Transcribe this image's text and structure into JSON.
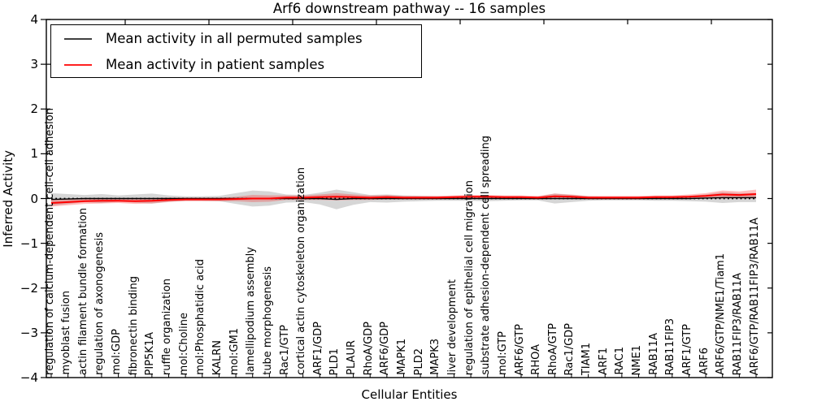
{
  "chart_data": {
    "type": "line",
    "title": "Arf6 downstream pathway -- 16 samples",
    "xlabel": "Cellular Entities",
    "ylabel": "Inferred Activity",
    "ylim": [
      -4,
      4
    ],
    "ytick_labels": [
      "4",
      "3",
      "2",
      "1",
      "0",
      "−1",
      "−2",
      "−3",
      "−4"
    ],
    "ytick_values": [
      4,
      3,
      2,
      1,
      0,
      -1,
      -2,
      -3,
      -4
    ],
    "grid": false,
    "legend_position": "upper left",
    "zero_line_style": "dotted",
    "zero_line_color": "#000000",
    "categories": [
      "regulation of calcium-dependent cell-cell adhesion",
      "myoblast fusion",
      "actin filament bundle formation",
      "regulation of axonogenesis",
      "mol:GDP",
      "fibronectin binding",
      "PIP5K1A",
      "ruffle organization",
      "mol:Choline",
      "mol:Phosphatidic acid",
      "KALRN",
      "mol:GM1",
      "lamellipodium assembly",
      "tube morphogenesis",
      "Rac1/GTP",
      "cortical actin cytoskeleton organization",
      "ARF1/GDP",
      "PLD1",
      "PLAUR",
      "RhoA/GDP",
      "ARF6/GDP",
      "MAPK1",
      "PLD2",
      "MAPK3",
      "liver development",
      "regulation of epithelial cell migration",
      "substrate adhesion-dependent cell spreading",
      "mol:GTP",
      "ARF6/GTP",
      "RHOA",
      "RhoA/GTP",
      "Rac1/GDP",
      "TIAM1",
      "ARF1",
      "RAC1",
      "NME1",
      "RAB11A",
      "RAB11FIP3",
      "ARF1/GTP",
      "ARF6",
      "ARF6/GTP/NME1/Tiam1",
      "RAB11FIP3/RAB11A",
      "ARF6/GTP/RAB11FIP3/RAB11A"
    ],
    "series": [
      {
        "name": "Mean activity in all permuted samples",
        "color": "#000000",
        "band_color": "rgba(120,120,120,0.30)",
        "values": [
          -0.02,
          -0.01,
          0,
          0,
          0,
          0,
          0,
          0,
          0,
          0,
          0,
          0,
          0,
          0,
          0,
          0,
          0,
          -0.02,
          0,
          0,
          0,
          0,
          0,
          0,
          0,
          0,
          0,
          0,
          0,
          0,
          0,
          0,
          0,
          0,
          0,
          0,
          0,
          0,
          0,
          0.01,
          0.02,
          0.02,
          0.02
        ],
        "band": [
          0.14,
          0.11,
          0.08,
          0.1,
          0.07,
          0.09,
          0.11,
          0.07,
          0.05,
          0.05,
          0.06,
          0.12,
          0.18,
          0.16,
          0.09,
          0.08,
          0.13,
          0.22,
          0.14,
          0.08,
          0.09,
          0.07,
          0.06,
          0.05,
          0.05,
          0.05,
          0.06,
          0.05,
          0.04,
          0.04,
          0.11,
          0.08,
          0.05,
          0.04,
          0.04,
          0.04,
          0.05,
          0.05,
          0.06,
          0.08,
          0.12,
          0.1,
          0.1
        ]
      },
      {
        "name": "Mean activity in patient samples",
        "color": "#ff0000",
        "band_color": "rgba(255,0,0,0.25)",
        "values": [
          -0.1,
          -0.08,
          -0.06,
          -0.05,
          -0.05,
          -0.06,
          -0.05,
          -0.03,
          -0.02,
          -0.02,
          -0.02,
          -0.01,
          0.0,
          0.0,
          0.02,
          0.02,
          0.03,
          0.04,
          0.03,
          0.02,
          0.03,
          0.02,
          0.02,
          0.02,
          0.03,
          0.04,
          0.04,
          0.03,
          0.03,
          0.02,
          0.05,
          0.04,
          0.02,
          0.02,
          0.02,
          0.02,
          0.03,
          0.03,
          0.04,
          0.06,
          0.09,
          0.08,
          0.1
        ],
        "band": [
          0.08,
          0.07,
          0.06,
          0.06,
          0.05,
          0.06,
          0.06,
          0.05,
          0.04,
          0.04,
          0.04,
          0.05,
          0.08,
          0.07,
          0.05,
          0.05,
          0.06,
          0.08,
          0.06,
          0.05,
          0.05,
          0.04,
          0.04,
          0.04,
          0.04,
          0.04,
          0.04,
          0.04,
          0.04,
          0.04,
          0.06,
          0.05,
          0.04,
          0.04,
          0.04,
          0.04,
          0.04,
          0.04,
          0.05,
          0.06,
          0.09,
          0.08,
          0.1
        ]
      }
    ]
  }
}
